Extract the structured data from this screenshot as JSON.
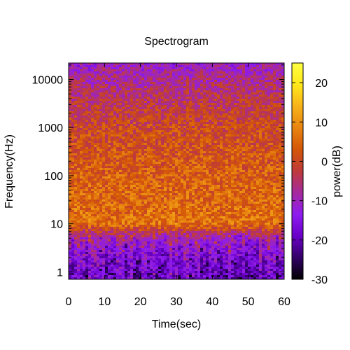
{
  "chart_data": {
    "type": "heatmap",
    "title": "Spectrogram",
    "xlabel": "Time(sec)",
    "ylabel": "Frequency(Hz)",
    "colorbar_label": "power(dB)",
    "xlim": [
      0,
      60
    ],
    "ylim": [
      0.7,
      22000
    ],
    "y_scale": "log",
    "color_range": [
      -30,
      25
    ],
    "x_ticks": [
      {
        "value": 0,
        "label": "0"
      },
      {
        "value": 10,
        "label": "10"
      },
      {
        "value": 20,
        "label": "20"
      },
      {
        "value": 30,
        "label": "30"
      },
      {
        "value": 40,
        "label": "40"
      },
      {
        "value": 50,
        "label": "50"
      },
      {
        "value": 60,
        "label": "60"
      }
    ],
    "y_ticks": [
      {
        "value": 1,
        "label": "1"
      },
      {
        "value": 10,
        "label": "10"
      },
      {
        "value": 100,
        "label": "100"
      },
      {
        "value": 1000,
        "label": "1000"
      },
      {
        "value": 10000,
        "label": "10000"
      }
    ],
    "colorbar_ticks": [
      {
        "value": 20,
        "label": "20"
      },
      {
        "value": 10,
        "label": "10"
      },
      {
        "value": 0,
        "label": "0"
      },
      {
        "value": -10,
        "label": "-10"
      },
      {
        "value": -20,
        "label": "-20"
      },
      {
        "value": -30,
        "label": "-30"
      }
    ],
    "power_profile": [
      {
        "frequency": 0.8,
        "power_db": -19
      },
      {
        "frequency": 1.5,
        "power_db": -17
      },
      {
        "frequency": 3,
        "power_db": -14
      },
      {
        "frequency": 6,
        "power_db": -6
      },
      {
        "frequency": 10,
        "power_db": 6
      },
      {
        "frequency": 30,
        "power_db": 5
      },
      {
        "frequency": 100,
        "power_db": 4
      },
      {
        "frequency": 300,
        "power_db": 2
      },
      {
        "frequency": 1000,
        "power_db": 0
      },
      {
        "frequency": 3000,
        "power_db": -3
      },
      {
        "frequency": 10000,
        "power_db": -7
      },
      {
        "frequency": 22000,
        "power_db": -11
      }
    ],
    "colormap": [
      "#000000",
      "#330066",
      "#6a00c8",
      "#8e1cf0",
      "#a62a9e",
      "#bf3a3a",
      "#d45608",
      "#e88410",
      "#f7b219",
      "#ffe81a",
      "#ffff40"
    ],
    "grid": false,
    "legend": "colorbar-right"
  }
}
